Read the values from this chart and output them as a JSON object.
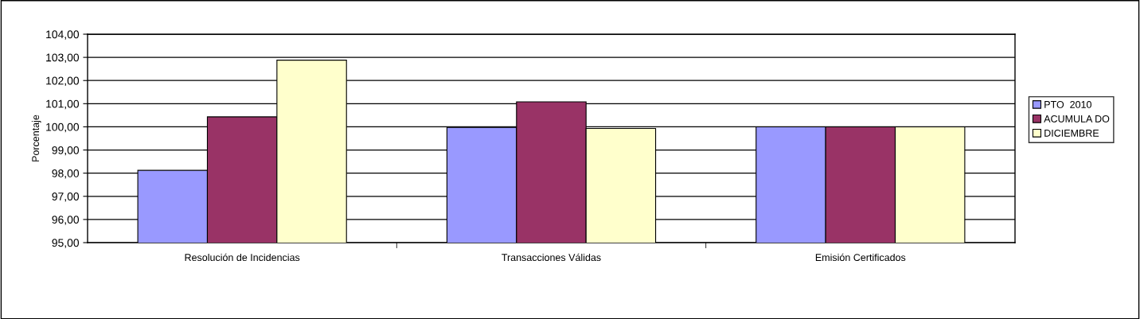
{
  "chart_data": {
    "type": "bar",
    "ylabel": "Porcentaje",
    "categories": [
      "Resolución de Incidencias",
      "Transacciones Válidas",
      "Emisión Certificados"
    ],
    "series": [
      {
        "name": "PTO  2010",
        "color": "#9999ff",
        "values": [
          98.12,
          99.97,
          100.0
        ]
      },
      {
        "name": "ACUMULA DO",
        "color": "#993366",
        "values": [
          100.43,
          101.08,
          100.0
        ]
      },
      {
        "name": "DICIEMBRE",
        "color": "#ffffcc",
        "values": [
          102.88,
          99.93,
          100.0
        ]
      }
    ],
    "ylim": [
      95,
      104
    ],
    "yticks": [
      {
        "value": 95,
        "label": "95,00"
      },
      {
        "value": 96,
        "label": "96,00"
      },
      {
        "value": 97,
        "label": "97,00"
      },
      {
        "value": 98,
        "label": "98,00"
      },
      {
        "value": 99,
        "label": "99,00"
      },
      {
        "value": 100,
        "label": "100,00"
      },
      {
        "value": 101,
        "label": "101,00"
      },
      {
        "value": 102,
        "label": "102,00"
      },
      {
        "value": 103,
        "label": "103,00"
      },
      {
        "value": 104,
        "label": "104,00"
      }
    ],
    "grid": "y",
    "legend": "right"
  }
}
